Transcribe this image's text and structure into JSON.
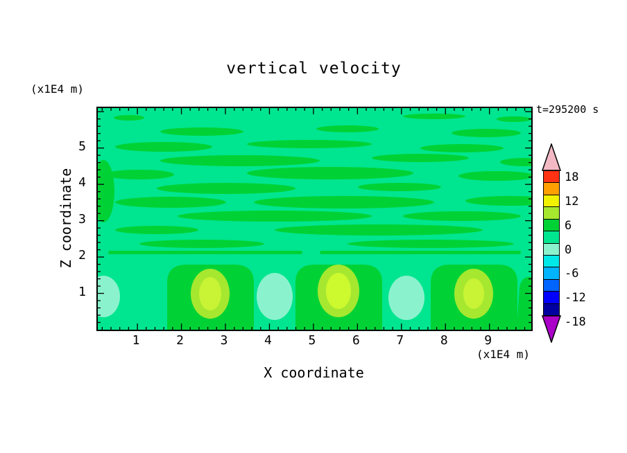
{
  "title": "vertical velocity",
  "timestamp": "t=295200 s",
  "axes": {
    "x": {
      "label": "X coordinate",
      "unit": "(x1E4 m)"
    },
    "z": {
      "label": "Z coordinate",
      "unit": "(x1E4 m)"
    }
  },
  "colorbar": {
    "tick_labels": [
      "18",
      "12",
      "6",
      "0",
      "-6",
      "-12",
      "-18"
    ],
    "colors_bottom_to_top": [
      "#0000A0",
      "#0000FF",
      "#0064FF",
      "#00B4FF",
      "#00E8E8",
      "#8BF2CE",
      "#00E58F",
      "#00D236",
      "#A6E82F",
      "#F2F200",
      "#FFA000",
      "#FF3214"
    ],
    "arrow_top_color": "#F2B9C4",
    "arrow_bottom_color": "#AA00C8"
  },
  "chart_data": {
    "type": "heatmap",
    "title": "vertical velocity",
    "xlabel": "X coordinate",
    "ylabel": "Z coordinate",
    "x_unit": "(x1E4 m)",
    "y_unit": "(x1E4 m)",
    "annotation": "t=295200 s",
    "xlim": [
      0.1,
      9.95
    ],
    "zlim": [
      0,
      6.1
    ],
    "x_ticks": [
      1,
      2,
      3,
      4,
      5,
      6,
      7,
      8,
      9
    ],
    "z_ticks": [
      1,
      2,
      3,
      4,
      5
    ],
    "contour_levels": [
      -18,
      -15,
      -12,
      -9,
      -6,
      -3,
      0,
      3,
      6,
      9,
      12,
      15,
      18
    ],
    "colorbar_labels": [
      18,
      12,
      6,
      0,
      -6,
      -12,
      -18
    ],
    "legend_position": "right vertical colorbar with overflow arrows",
    "grid": false,
    "features": {
      "background_band": "field dominated by 0-to-3 level (spring green)",
      "upper_layers": "irregular elongated horizontal bands at the 3-to-6 level between z=2 and z=6",
      "transition_line": "thin 3-to-6 band spanning nearly full width near z=2",
      "convective_plumes": "broad 3-to-6 columns below z=2 centered near x=2.6, x=5.5, x=8.6 reaching the bottom boundary",
      "updraft_cores": [
        {
          "x": 2.6,
          "z": 0.9,
          "level": "6 to 12"
        },
        {
          "x": 5.5,
          "z": 0.95,
          "level": "6 to 12"
        },
        {
          "x": 8.6,
          "z": 0.9,
          "level": "6 to 12"
        }
      ],
      "downdraft_cores": [
        {
          "x": 0.2,
          "z": 0.85,
          "level": "-3 to 0"
        },
        {
          "x": 4.05,
          "z": 0.85,
          "level": "-3 to 0"
        },
        {
          "x": 7.0,
          "z": 0.8,
          "level": "-3 to 0"
        }
      ]
    }
  }
}
